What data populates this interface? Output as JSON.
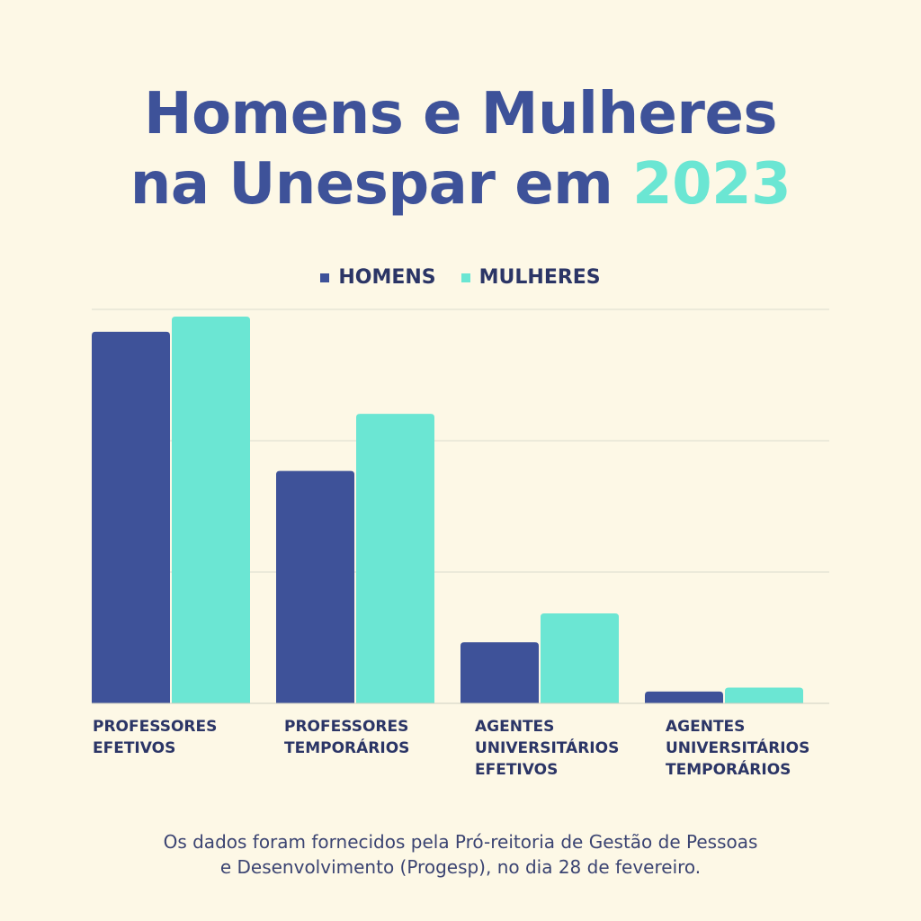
{
  "title": {
    "line1": "Homens e Mulheres",
    "line2": "na Unespar em",
    "year": "2023"
  },
  "colors": {
    "homens": "#3e5299",
    "mulheres": "#6be6d3",
    "background": "#fdf8e6",
    "grid": "#dcdccf"
  },
  "chart_data": {
    "type": "bar",
    "categories": [
      "PROFESSORES\nEFETIVOS",
      "PROFESSORES\nTEMPORÁRIOS",
      "AGENTES\nUNIVERSITÁRIOS\nEFETIVOS",
      "AGENTES\nUNIVERSITÁRIOS\nTEMPORÁRIOS"
    ],
    "series": [
      {
        "name": "HOMENS",
        "values": [
          566,
          354,
          93,
          18
        ]
      },
      {
        "name": "MULHERES",
        "values": [
          589,
          441,
          137,
          24
        ]
      }
    ],
    "ylim": [
      0,
      600
    ],
    "grid": true,
    "legend": "top-center"
  },
  "footnote": {
    "line1": "Os dados foram fornecidos pela Pró-reitoria de Gestão de Pessoas",
    "line2": "e Desenvolvimento (Progesp), no dia 28 de fevereiro."
  }
}
